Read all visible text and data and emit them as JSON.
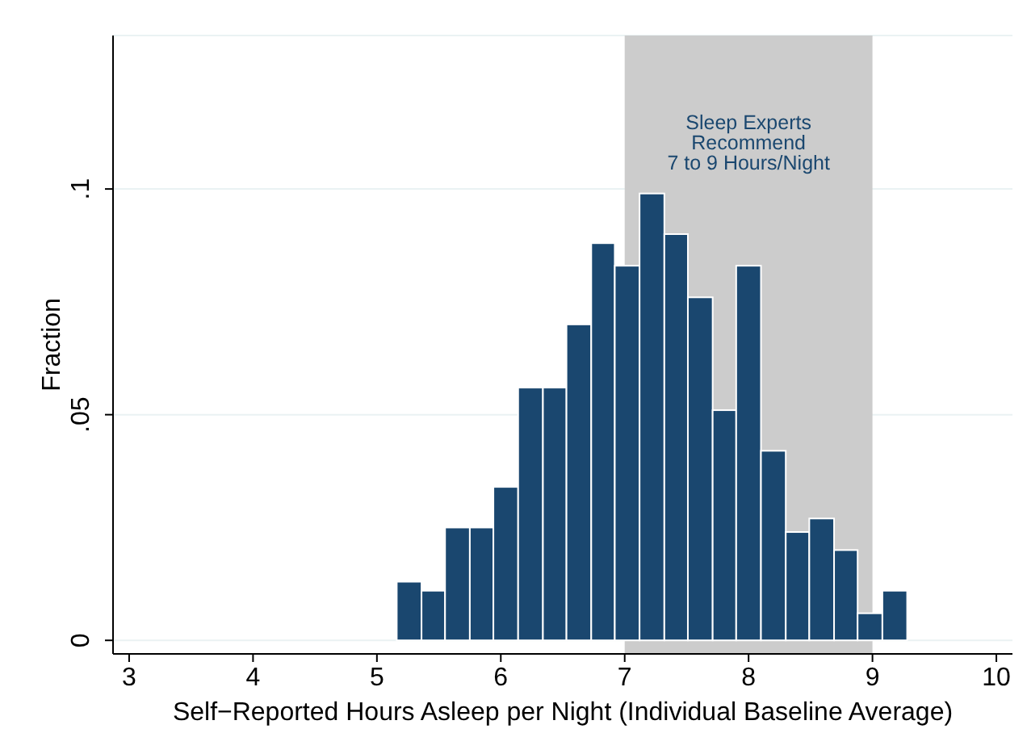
{
  "chart_data": {
    "type": "histogram",
    "xlabel": "Self−Reported Hours Asleep per Night (Individual Baseline Average)",
    "ylabel": "Fraction",
    "bins": [
      5.16,
      5.36,
      5.55,
      5.75,
      5.94,
      6.14,
      6.34,
      6.53,
      6.73,
      6.92,
      7.12,
      7.32,
      7.51,
      7.71,
      7.9,
      8.1,
      8.3,
      8.49,
      8.69,
      8.88,
      9.08,
      9.28
    ],
    "values": [
      0.013,
      0.011,
      0.025,
      0.025,
      0.034,
      0.056,
      0.056,
      0.07,
      0.088,
      0.083,
      0.099,
      0.09,
      0.076,
      0.051,
      0.083,
      0.042,
      0.024,
      0.027,
      0.02,
      0.006,
      0.011
    ],
    "color": "#1a476f",
    "xlim": [
      2.87,
      10.13
    ],
    "xticks": [
      3,
      4,
      5,
      6,
      7,
      8,
      9,
      10
    ],
    "ylim": [
      -0.003,
      0.134
    ],
    "yticks": [
      0,
      {
        "value": 0.05,
        "label": ".05"
      },
      {
        "value": 0.1,
        "label": ".1"
      }
    ],
    "grid": "y",
    "bands": [
      {
        "axis": "x",
        "from": 7,
        "to": 9,
        "label": "Sleep Experts\nRecommend\n7 to 9 Hours/Night",
        "color": "#cccccc"
      }
    ]
  }
}
